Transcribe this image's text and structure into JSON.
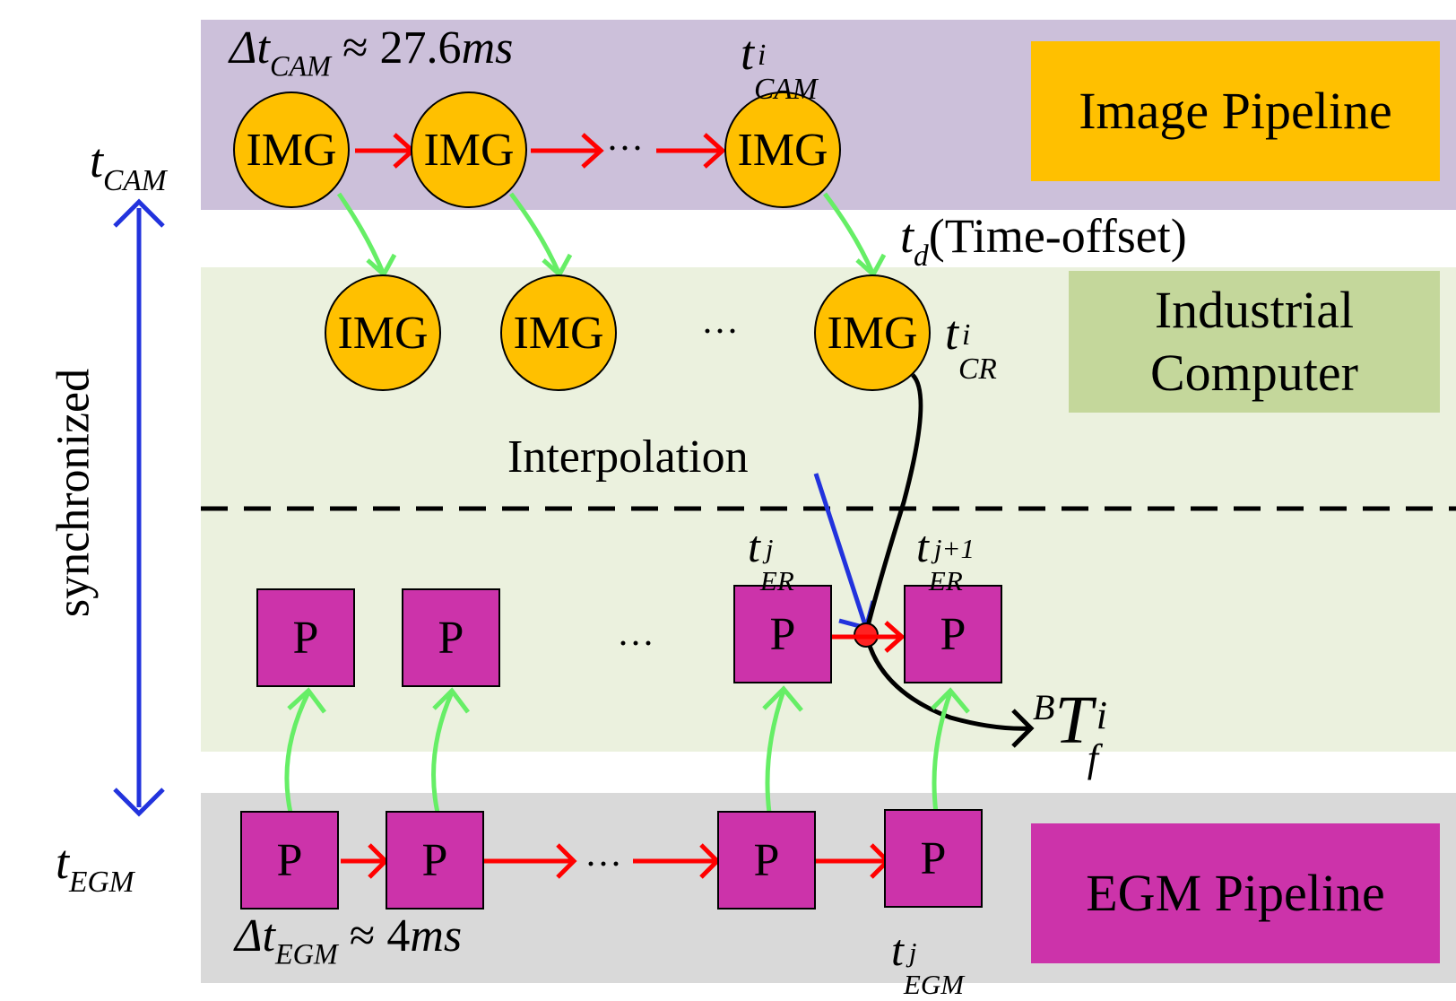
{
  "bands": {
    "image_pipeline": {
      "label": "Image Pipeline",
      "color": "#ccc0da"
    },
    "industrial": {
      "label": "Industrial\nComputer",
      "color": "#ebf1de"
    },
    "egm_pipeline": {
      "label": "EGM Pipeline",
      "color": "#d9d9d9"
    }
  },
  "colors": {
    "img_node": "#ffc000",
    "pose_node": "#cc33aa",
    "image_label_box": "#ffc000",
    "industrial_label_box": "#c4d79b",
    "egm_label_box": "#cc33aa",
    "flow_arrow": "#ff0000",
    "transfer_arrow": "#66ee66",
    "sync_arrow": "#2233dd",
    "interp_arrow": "#2233dd"
  },
  "nodes": {
    "img": "IMG",
    "pose": "P",
    "ellipsis": "···"
  },
  "labels": {
    "dt_cam_prefix": "Δt",
    "dt_cam_sub": "CAM",
    "dt_cam_value": "≈ 27.6",
    "dt_cam_unit": "ms",
    "t_cam_i_base": "t",
    "t_cam_i_sup": "i",
    "t_cam_i_sub": "CAM",
    "t_cam_base": "t",
    "t_cam_sub": "CAM",
    "td_base": "t",
    "td_sub": "d",
    "td_text": "(Time-offset)",
    "t_cr_base": "t",
    "t_cr_sup": "i",
    "t_cr_sub": "CR",
    "interpolation": "Interpolation",
    "synchronized": "synchronized",
    "t_er_j_base": "t",
    "t_er_j_sup": "j",
    "t_er_j_sub": "ER",
    "t_er_j1_base": "t",
    "t_er_j1_sup": "j+1",
    "t_er_j1_sub": "ER",
    "btf_pre": "B",
    "btf_base": "T",
    "btf_sup": "i",
    "btf_sub": "f",
    "t_egm_base": "t",
    "t_egm_sub": "EGM",
    "dt_egm_prefix": "Δt",
    "dt_egm_sub": "EGM",
    "dt_egm_value": "≈ 4",
    "dt_egm_unit": "ms",
    "t_egm_j_base": "t",
    "t_egm_j_sup": "j",
    "t_egm_j_sub": "EGM"
  }
}
